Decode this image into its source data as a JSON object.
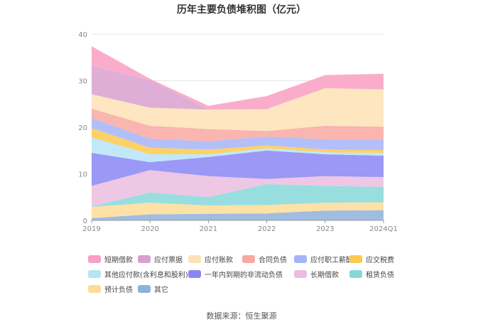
{
  "source_note": "数据来源：恒生聚源",
  "chart_data": {
    "type": "area",
    "stacked": true,
    "title": "历年主要负债堆积图（亿元）",
    "xlabel": "",
    "ylabel": "",
    "x": [
      "2019",
      "2020",
      "2021",
      "2022",
      "2023",
      "2024Q1"
    ],
    "ylim": [
      0,
      40
    ],
    "yticks": [
      0,
      10,
      20,
      30,
      40
    ],
    "grid": true,
    "legend_position": "bottom",
    "series": [
      {
        "name": "其它",
        "color": "#8fb1dc",
        "values": [
          0.5,
          1.3,
          1.4,
          1.5,
          2.1,
          2.2
        ]
      },
      {
        "name": "预计负债",
        "color": "#fddc98",
        "values": [
          2.4,
          2.5,
          1.8,
          1.8,
          1.7,
          1.7
        ]
      },
      {
        "name": "租赁负债",
        "color": "#86d8d8",
        "values": [
          0.1,
          2.2,
          1.8,
          4.5,
          3.6,
          3.3
        ]
      },
      {
        "name": "长期借款",
        "color": "#ebbde1",
        "values": [
          4.4,
          4.8,
          4.5,
          1.1,
          2.1,
          2.1
        ]
      },
      {
        "name": "一年内到期的非流动负债",
        "color": "#8986f4",
        "values": [
          7.1,
          1.7,
          4.1,
          6.1,
          4.7,
          4.6
        ]
      },
      {
        "name": "其他应付款(含利息和股利)",
        "color": "#b6e4f8",
        "values": [
          3.3,
          1.7,
          0.6,
          0.5,
          0.4,
          0.6
        ]
      },
      {
        "name": "应交税费",
        "color": "#fdc94e",
        "values": [
          2.0,
          1.4,
          1.0,
          0.6,
          0.6,
          0.6
        ]
      },
      {
        "name": "应付职工薪酬",
        "color": "#a5b4f8",
        "values": [
          2.2,
          1.9,
          1.8,
          1.9,
          2.2,
          2.2
        ]
      },
      {
        "name": "合同负债",
        "color": "#f9a8a2",
        "values": [
          2.0,
          2.8,
          2.6,
          1.2,
          2.9,
          2.8
        ]
      },
      {
        "name": "应付账款",
        "color": "#fde2b5",
        "values": [
          3.1,
          3.9,
          4.2,
          4.7,
          8.1,
          8.0
        ]
      },
      {
        "name": "应付票据",
        "color": "#d9a0cf",
        "values": [
          6.1,
          5.9,
          0.0,
          0.0,
          0.0,
          0.0
        ]
      },
      {
        "name": "短期借款",
        "color": "#f99fc1",
        "values": [
          4.2,
          0.3,
          0.8,
          2.8,
          2.8,
          3.4
        ]
      }
    ]
  }
}
